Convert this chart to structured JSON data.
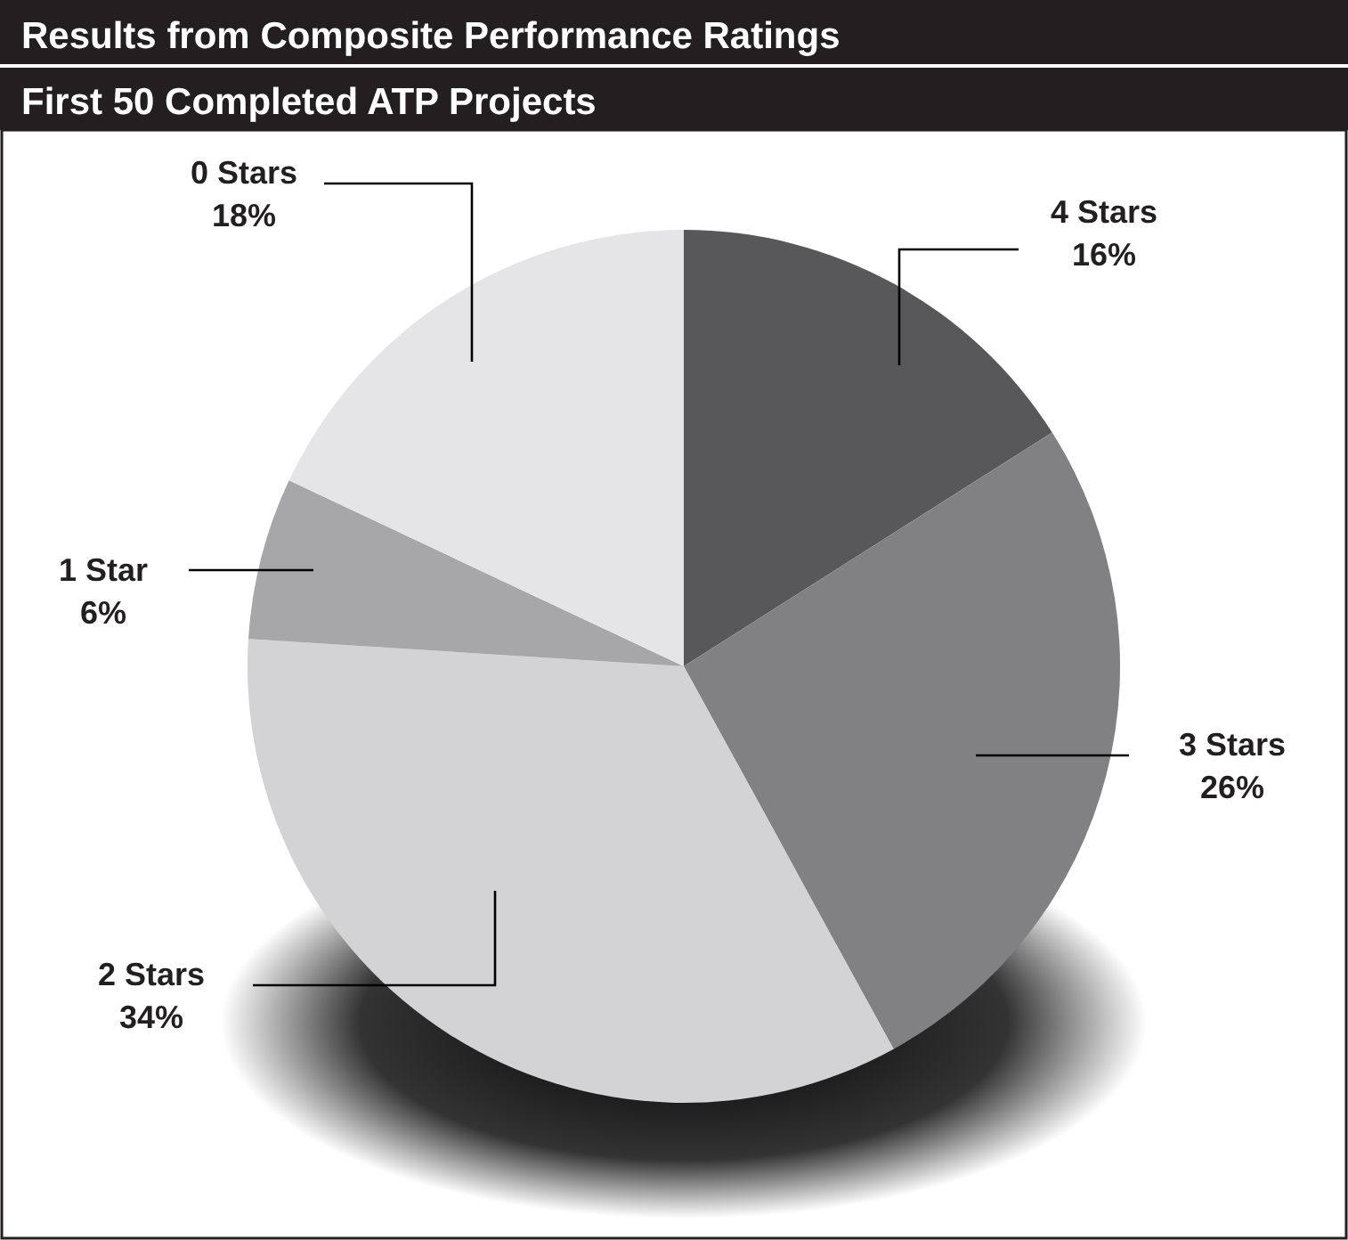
{
  "chart_data": {
    "type": "pie",
    "title": "Results from Composite Performance Ratings",
    "subtitle": "First 50 Completed ATP Projects",
    "categories": [
      "4 Stars",
      "3 Stars",
      "2 Stars",
      "1 Star",
      "0 Stars"
    ],
    "values": [
      16,
      26,
      34,
      6,
      18
    ],
    "value_labels": [
      "16%",
      "26%",
      "34%",
      "6%",
      "18%"
    ],
    "colors": [
      "#58585a",
      "#818184",
      "#d3d3d5",
      "#a7a7a9",
      "#e5e5e7"
    ]
  }
}
